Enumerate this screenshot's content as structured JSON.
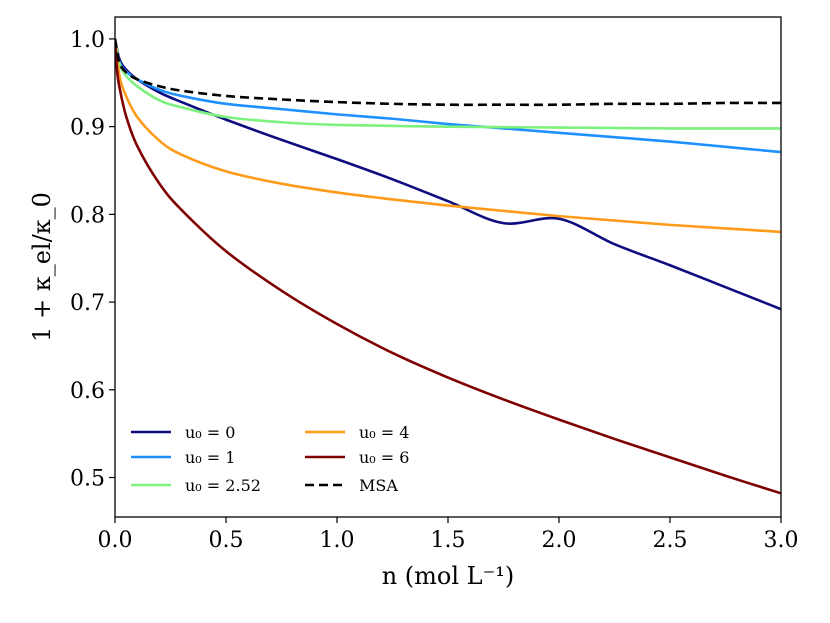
{
  "chart_data": {
    "type": "line",
    "title": "",
    "xlabel": "n (mol L⁻¹)",
    "ylabel": "1 + κ_el/κ_0",
    "xlim": [
      0.0,
      3.0
    ],
    "ylim": [
      0.455,
      1.025
    ],
    "xticks": [
      0.0,
      0.5,
      1.0,
      1.5,
      2.0,
      2.5,
      3.0
    ],
    "xtick_labels": [
      "0.0",
      "0.5",
      "1.0",
      "1.5",
      "2.0",
      "2.5",
      "3.0"
    ],
    "yticks": [
      0.5,
      0.6,
      0.7,
      0.8,
      0.9,
      1.0
    ],
    "ytick_labels": [
      "0.5",
      "0.6",
      "0.7",
      "0.8",
      "0.9",
      "1.0"
    ],
    "grid": false,
    "legend_position": "lower-left",
    "series": [
      {
        "name": "u₀ = 0",
        "color": "#0d0d80",
        "dash": "solid",
        "x": [
          0,
          0.02,
          0.05,
          0.1,
          0.2,
          0.3,
          0.5,
          0.75,
          1.0,
          1.25,
          1.5,
          1.75,
          2.0,
          2.25,
          2.5,
          2.75,
          3.0
        ],
        "y": [
          1.0,
          0.977,
          0.965,
          0.954,
          0.939,
          0.928,
          0.908,
          0.885,
          0.863,
          0.84,
          0.815,
          0.79,
          0.795,
          0.766,
          0.742,
          0.717,
          0.692
        ]
      },
      {
        "name": "u₀ = 1",
        "color": "#1e90ff",
        "dash": "solid",
        "x": [
          0,
          0.02,
          0.05,
          0.1,
          0.2,
          0.3,
          0.5,
          0.75,
          1.0,
          1.25,
          1.5,
          1.75,
          2.0,
          2.25,
          2.5,
          2.75,
          3.0
        ],
        "y": [
          1.0,
          0.974,
          0.963,
          0.954,
          0.942,
          0.935,
          0.926,
          0.92,
          0.914,
          0.909,
          0.903,
          0.898,
          0.893,
          0.888,
          0.883,
          0.877,
          0.871
        ]
      },
      {
        "name": "u₀ = 2.52",
        "color": "#7ef07e",
        "dash": "solid",
        "x": [
          0,
          0.02,
          0.05,
          0.1,
          0.2,
          0.3,
          0.5,
          0.75,
          1.0,
          1.5,
          2.0,
          2.5,
          3.0
        ],
        "y": [
          1.0,
          0.972,
          0.958,
          0.946,
          0.93,
          0.922,
          0.911,
          0.905,
          0.902,
          0.9,
          0.899,
          0.898,
          0.898
        ]
      },
      {
        "name": "u₀ = 4",
        "color": "#ff9a1a",
        "dash": "solid",
        "x": [
          0,
          0.02,
          0.05,
          0.1,
          0.2,
          0.3,
          0.5,
          0.75,
          1.0,
          1.25,
          1.5,
          1.75,
          2.0,
          2.25,
          2.5,
          2.75,
          3.0
        ],
        "y": [
          1.0,
          0.958,
          0.935,
          0.911,
          0.884,
          0.868,
          0.849,
          0.835,
          0.825,
          0.817,
          0.81,
          0.804,
          0.798,
          0.793,
          0.788,
          0.784,
          0.78
        ]
      },
      {
        "name": "u₀ = 6",
        "color": "#7f0000",
        "dash": "solid",
        "x": [
          0,
          0.01,
          0.02,
          0.05,
          0.1,
          0.2,
          0.3,
          0.5,
          0.75,
          1.0,
          1.25,
          1.5,
          1.75,
          2.0,
          2.25,
          2.5,
          2.75,
          3.0
        ],
        "y": [
          1.0,
          0.962,
          0.945,
          0.912,
          0.878,
          0.835,
          0.805,
          0.758,
          0.713,
          0.675,
          0.642,
          0.614,
          0.589,
          0.566,
          0.544,
          0.523,
          0.502,
          0.482
        ]
      },
      {
        "name": "MSA",
        "color": "#000000",
        "dash": "dashed",
        "x": [
          0,
          0.02,
          0.05,
          0.1,
          0.2,
          0.3,
          0.5,
          0.75,
          1.0,
          1.25,
          1.5,
          1.75,
          2.0,
          2.25,
          2.5,
          2.75,
          3.0
        ],
        "y": [
          1.0,
          0.973,
          0.962,
          0.954,
          0.946,
          0.941,
          0.935,
          0.931,
          0.928,
          0.926,
          0.925,
          0.925,
          0.925,
          0.926,
          0.926,
          0.927,
          0.927
        ]
      }
    ]
  }
}
